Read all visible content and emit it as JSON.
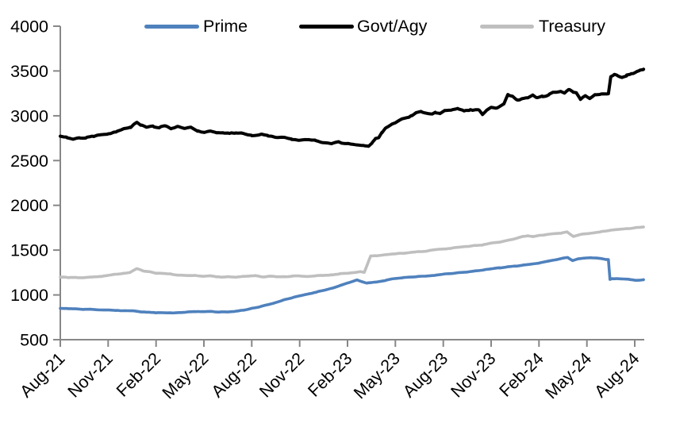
{
  "chart_data": {
    "type": "line",
    "title": "",
    "xlabel": "",
    "ylabel": "",
    "grid": false,
    "legend_position": "top",
    "background": "#ffffff",
    "axis_color": "#878787",
    "text_color": "#000000",
    "ylim": [
      500,
      4000
    ],
    "y_ticks": [
      500,
      1000,
      1500,
      2000,
      2500,
      3000,
      3500,
      4000
    ],
    "x_unit": "months since Aug-21, sampled weekly",
    "x_range_months": [
      0,
      36.55
    ],
    "x_tick_labels": [
      "Aug-21",
      "Nov-21",
      "Feb-22",
      "May-22",
      "Aug-22",
      "Nov-22",
      "Feb-23",
      "May-23",
      "Aug-23",
      "Nov-23",
      "Feb-24",
      "May-24",
      "Aug-24"
    ],
    "x_tick_month_index": [
      0,
      3,
      6,
      9,
      12,
      15,
      18,
      21,
      24,
      27,
      30,
      33,
      36
    ],
    "series": [
      {
        "name": "Prime",
        "color": "#4F81BD",
        "wiggle": 4,
        "points": [
          [
            0,
            850
          ],
          [
            0.5,
            846
          ],
          [
            1,
            843
          ],
          [
            1.5,
            840
          ],
          [
            2,
            838
          ],
          [
            2.5,
            836
          ],
          [
            3,
            833
          ],
          [
            3.5,
            829
          ],
          [
            4,
            825
          ],
          [
            4.5,
            820
          ],
          [
            5,
            814
          ],
          [
            5.5,
            809
          ],
          [
            6,
            804
          ],
          [
            6.5,
            801
          ],
          [
            7,
            799
          ],
          [
            7.5,
            803
          ],
          [
            8,
            809
          ],
          [
            8.5,
            814
          ],
          [
            9,
            812
          ],
          [
            9.5,
            816
          ],
          [
            10,
            810
          ],
          [
            10.5,
            812
          ],
          [
            11,
            818
          ],
          [
            11.5,
            830
          ],
          [
            12,
            848
          ],
          [
            12.5,
            865
          ],
          [
            13,
            890
          ],
          [
            13.5,
            916
          ],
          [
            14,
            942
          ],
          [
            14.5,
            968
          ],
          [
            15,
            990
          ],
          [
            15.5,
            1010
          ],
          [
            16,
            1028
          ],
          [
            16.5,
            1050
          ],
          [
            17,
            1075
          ],
          [
            17.5,
            1102
          ],
          [
            18,
            1132
          ],
          [
            18.6,
            1170
          ],
          [
            19.2,
            1128
          ],
          [
            19.8,
            1146
          ],
          [
            20.4,
            1163
          ],
          [
            21,
            1180
          ],
          [
            21.5,
            1190
          ],
          [
            22,
            1198
          ],
          [
            22.5,
            1205
          ],
          [
            23,
            1212
          ],
          [
            23.5,
            1222
          ],
          [
            24,
            1232
          ],
          [
            24.5,
            1240
          ],
          [
            25,
            1250
          ],
          [
            25.5,
            1258
          ],
          [
            26,
            1268
          ],
          [
            26.5,
            1278
          ],
          [
            27,
            1290
          ],
          [
            27.5,
            1300
          ],
          [
            28,
            1310
          ],
          [
            28.5,
            1320
          ],
          [
            29,
            1332
          ],
          [
            29.5,
            1344
          ],
          [
            30,
            1357
          ],
          [
            30.5,
            1372
          ],
          [
            31,
            1392
          ],
          [
            31.5,
            1408
          ],
          [
            31.8,
            1418
          ],
          [
            32.1,
            1385
          ],
          [
            32.45,
            1402
          ],
          [
            32.8,
            1412
          ],
          [
            33.2,
            1416
          ],
          [
            33.6,
            1412
          ],
          [
            33.9,
            1406
          ],
          [
            34.2,
            1398
          ],
          [
            34.35,
            1395
          ],
          [
            34.45,
            1172
          ],
          [
            34.6,
            1180
          ],
          [
            34.9,
            1182
          ],
          [
            35.2,
            1178
          ],
          [
            35.6,
            1172
          ],
          [
            36,
            1166
          ],
          [
            36.3,
            1164
          ],
          [
            36.55,
            1170
          ]
        ]
      },
      {
        "name": "Govt/Agy",
        "color": "#000000",
        "wiggle": 12,
        "points": [
          [
            0,
            2772
          ],
          [
            0.4,
            2760
          ],
          [
            0.8,
            2742
          ],
          [
            1.2,
            2762
          ],
          [
            1.6,
            2752
          ],
          [
            2,
            2772
          ],
          [
            2.5,
            2788
          ],
          [
            3,
            2800
          ],
          [
            3.5,
            2822
          ],
          [
            4,
            2848
          ],
          [
            4.4,
            2872
          ],
          [
            4.8,
            2928
          ],
          [
            5.1,
            2895
          ],
          [
            5.4,
            2862
          ],
          [
            5.8,
            2886
          ],
          [
            6.2,
            2868
          ],
          [
            6.6,
            2882
          ],
          [
            7,
            2856
          ],
          [
            7.4,
            2880
          ],
          [
            7.8,
            2846
          ],
          [
            8.2,
            2872
          ],
          [
            8.6,
            2826
          ],
          [
            9,
            2808
          ],
          [
            9.4,
            2822
          ],
          [
            9.8,
            2802
          ],
          [
            10.2,
            2812
          ],
          [
            10.6,
            2798
          ],
          [
            11,
            2803
          ],
          [
            11.5,
            2796
          ],
          [
            12,
            2788
          ],
          [
            12.5,
            2792
          ],
          [
            13,
            2778
          ],
          [
            13.5,
            2768
          ],
          [
            14,
            2758
          ],
          [
            14.5,
            2740
          ],
          [
            15,
            2728
          ],
          [
            15.5,
            2738
          ],
          [
            16,
            2722
          ],
          [
            16.5,
            2708
          ],
          [
            17,
            2698
          ],
          [
            17.4,
            2712
          ],
          [
            17.8,
            2688
          ],
          [
            18.2,
            2680
          ],
          [
            18.6,
            2664
          ],
          [
            19,
            2672
          ],
          [
            19.3,
            2658
          ],
          [
            19.55,
            2700
          ],
          [
            19.75,
            2732
          ],
          [
            19.95,
            2746
          ],
          [
            20.15,
            2808
          ],
          [
            20.4,
            2872
          ],
          [
            20.7,
            2896
          ],
          [
            21,
            2912
          ],
          [
            21.3,
            2940
          ],
          [
            21.7,
            2976
          ],
          [
            22,
            3006
          ],
          [
            22.3,
            3036
          ],
          [
            22.6,
            3048
          ],
          [
            22.9,
            3030
          ],
          [
            23.2,
            3012
          ],
          [
            23.5,
            3036
          ],
          [
            23.8,
            3028
          ],
          [
            24.1,
            3052
          ],
          [
            24.5,
            3066
          ],
          [
            24.9,
            3078
          ],
          [
            25.3,
            3060
          ],
          [
            25.7,
            3068
          ],
          [
            26.2,
            3062
          ],
          [
            26.45,
            3012
          ],
          [
            26.7,
            3065
          ],
          [
            27,
            3095
          ],
          [
            27.4,
            3082
          ],
          [
            27.8,
            3120
          ],
          [
            28.05,
            3225
          ],
          [
            28.35,
            3212
          ],
          [
            28.65,
            3170
          ],
          [
            28.95,
            3190
          ],
          [
            29.3,
            3196
          ],
          [
            29.6,
            3235
          ],
          [
            29.9,
            3200
          ],
          [
            30.2,
            3215
          ],
          [
            30.6,
            3235
          ],
          [
            31,
            3255
          ],
          [
            31.35,
            3280
          ],
          [
            31.6,
            3265
          ],
          [
            31.85,
            3290
          ],
          [
            32.1,
            3262
          ],
          [
            32.35,
            3255
          ],
          [
            32.6,
            3180
          ],
          [
            32.9,
            3222
          ],
          [
            33.2,
            3196
          ],
          [
            33.5,
            3235
          ],
          [
            33.9,
            3243
          ],
          [
            34.35,
            3246
          ],
          [
            34.5,
            3442
          ],
          [
            34.72,
            3464
          ],
          [
            34.95,
            3452
          ],
          [
            35.2,
            3440
          ],
          [
            35.5,
            3456
          ],
          [
            35.8,
            3468
          ],
          [
            36.05,
            3488
          ],
          [
            36.3,
            3508
          ],
          [
            36.55,
            3520
          ]
        ]
      },
      {
        "name": "Treasury",
        "color": "#BFBFBF",
        "wiggle": 5,
        "points": [
          [
            0,
            1198
          ],
          [
            0.5,
            1194
          ],
          [
            1,
            1196
          ],
          [
            1.5,
            1193
          ],
          [
            2,
            1200
          ],
          [
            2.5,
            1206
          ],
          [
            3,
            1218
          ],
          [
            3.5,
            1230
          ],
          [
            4,
            1242
          ],
          [
            4.4,
            1256
          ],
          [
            4.8,
            1290
          ],
          [
            5.2,
            1268
          ],
          [
            5.6,
            1256
          ],
          [
            6,
            1246
          ],
          [
            6.5,
            1236
          ],
          [
            7,
            1228
          ],
          [
            7.5,
            1220
          ],
          [
            8,
            1214
          ],
          [
            8.5,
            1212
          ],
          [
            9,
            1206
          ],
          [
            9.4,
            1214
          ],
          [
            9.8,
            1200
          ],
          [
            10.2,
            1197
          ],
          [
            10.6,
            1205
          ],
          [
            11,
            1200
          ],
          [
            11.4,
            1204
          ],
          [
            11.8,
            1210
          ],
          [
            12.2,
            1212
          ],
          [
            12.6,
            1202
          ],
          [
            13,
            1207
          ],
          [
            13.5,
            1203
          ],
          [
            14,
            1206
          ],
          [
            14.5,
            1209
          ],
          [
            15,
            1212
          ],
          [
            15.5,
            1208
          ],
          [
            16,
            1214
          ],
          [
            16.5,
            1218
          ],
          [
            17,
            1224
          ],
          [
            17.5,
            1232
          ],
          [
            18,
            1240
          ],
          [
            18.4,
            1250
          ],
          [
            18.8,
            1258
          ],
          [
            19.05,
            1252
          ],
          [
            19.25,
            1340
          ],
          [
            19.45,
            1432
          ],
          [
            19.8,
            1440
          ],
          [
            20.2,
            1448
          ],
          [
            20.6,
            1452
          ],
          [
            21,
            1458
          ],
          [
            21.5,
            1464
          ],
          [
            22,
            1474
          ],
          [
            22.5,
            1482
          ],
          [
            23,
            1492
          ],
          [
            23.5,
            1500
          ],
          [
            24,
            1510
          ],
          [
            24.5,
            1520
          ],
          [
            25,
            1530
          ],
          [
            25.5,
            1540
          ],
          [
            26,
            1550
          ],
          [
            26.5,
            1562
          ],
          [
            27,
            1574
          ],
          [
            27.5,
            1590
          ],
          [
            28,
            1608
          ],
          [
            28.5,
            1625
          ],
          [
            29,
            1648
          ],
          [
            29.3,
            1660
          ],
          [
            29.6,
            1652
          ],
          [
            30,
            1666
          ],
          [
            30.5,
            1674
          ],
          [
            31,
            1684
          ],
          [
            31.4,
            1692
          ],
          [
            31.75,
            1700
          ],
          [
            32.15,
            1656
          ],
          [
            32.5,
            1670
          ],
          [
            32.8,
            1680
          ],
          [
            33.1,
            1688
          ],
          [
            33.5,
            1697
          ],
          [
            34,
            1710
          ],
          [
            34.5,
            1722
          ],
          [
            35,
            1732
          ],
          [
            35.5,
            1742
          ],
          [
            36,
            1750
          ],
          [
            36.55,
            1758
          ]
        ]
      }
    ]
  }
}
